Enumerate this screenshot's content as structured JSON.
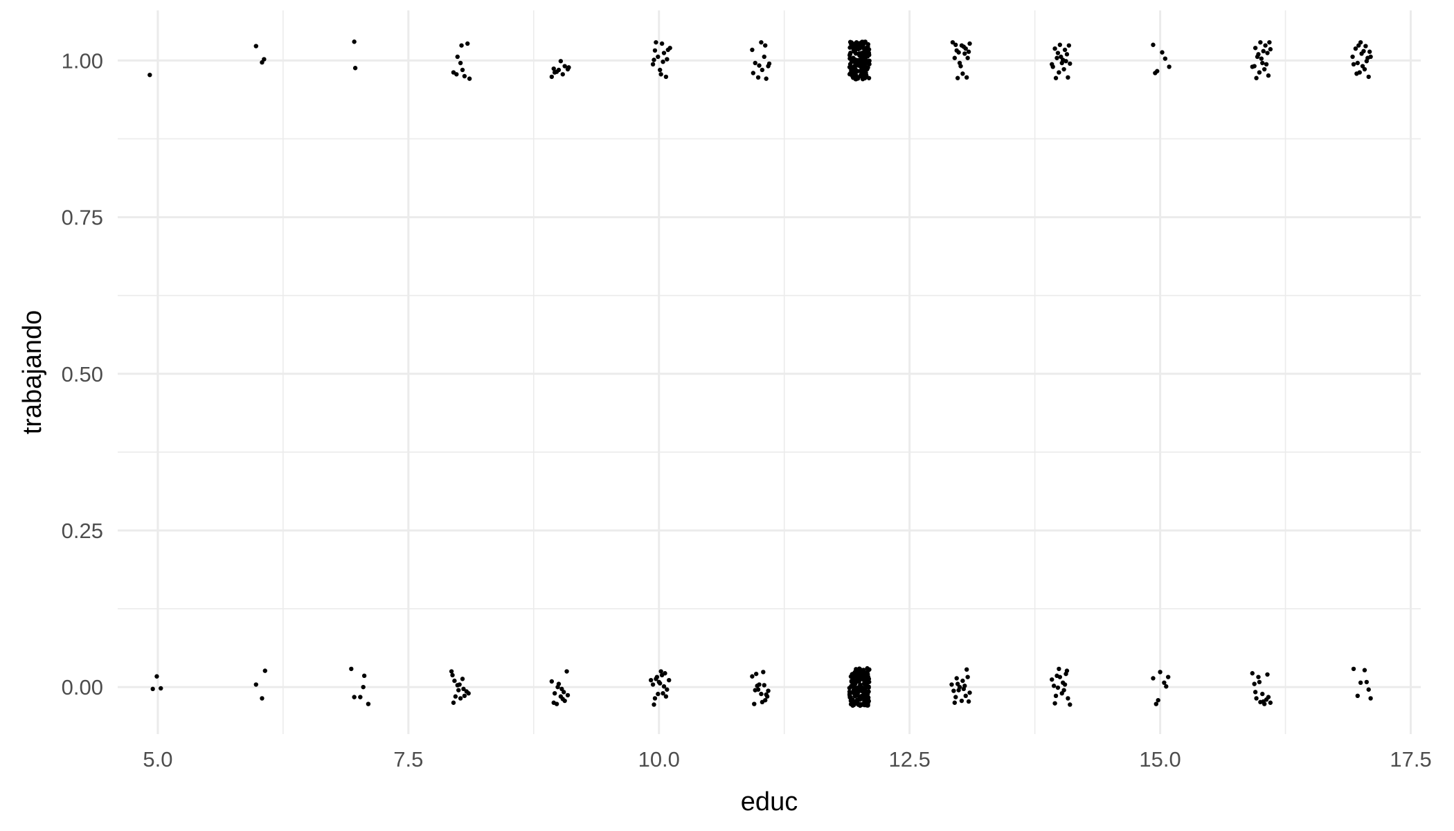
{
  "chart_data": {
    "type": "scatter",
    "title": "",
    "xlabel": "educ",
    "ylabel": "trabajando",
    "xlim": [
      4.6,
      17.6
    ],
    "ylim": [
      -0.075,
      1.08
    ],
    "x_ticks": [
      5.0,
      7.5,
      10.0,
      12.5,
      15.0,
      17.5
    ],
    "x_tick_labels": [
      "5.0",
      "7.5",
      "10.0",
      "12.5",
      "15.0",
      "17.5"
    ],
    "y_ticks": [
      0.0,
      0.25,
      0.5,
      0.75,
      1.0
    ],
    "y_tick_labels": [
      "0.00",
      "0.25",
      "0.50",
      "0.75",
      "1.00"
    ],
    "grid": true,
    "legend": "none",
    "point_color": "#000000",
    "jitter": true,
    "points": [
      {
        "x": 4.92,
        "y": 0.977
      },
      {
        "x": 5.98,
        "y": 1.023
      },
      {
        "x": 6.06,
        "y": 1.002
      },
      {
        "x": 6.04,
        "y": 0.997
      },
      {
        "x": 6.96,
        "y": 1.03
      },
      {
        "x": 6.97,
        "y": 0.988
      },
      {
        "x": 7.95,
        "y": 0.981
      },
      {
        "x": 8.02,
        "y": 0.996
      },
      {
        "x": 8.09,
        "y": 1.027
      },
      {
        "x": 7.99,
        "y": 1.006
      },
      {
        "x": 8.04,
        "y": 0.985
      },
      {
        "x": 8.11,
        "y": 0.971
      },
      {
        "x": 8.03,
        "y": 1.024
      },
      {
        "x": 7.98,
        "y": 0.978
      },
      {
        "x": 8.06,
        "y": 0.975
      },
      {
        "x": 8.93,
        "y": 0.974
      },
      {
        "x": 8.95,
        "y": 0.987
      },
      {
        "x": 9.0,
        "y": 0.985
      },
      {
        "x": 9.06,
        "y": 0.991
      },
      {
        "x": 9.02,
        "y": 0.999
      },
      {
        "x": 8.98,
        "y": 0.982
      },
      {
        "x": 9.09,
        "y": 0.986
      },
      {
        "x": 9.04,
        "y": 0.978
      },
      {
        "x": 9.1,
        "y": 0.989
      },
      {
        "x": 8.96,
        "y": 0.981
      },
      {
        "x": 9.94,
        "y": 0.994
      },
      {
        "x": 9.97,
        "y": 1.029
      },
      {
        "x": 10.03,
        "y": 1.027
      },
      {
        "x": 10.09,
        "y": 1.017
      },
      {
        "x": 10.02,
        "y": 0.978
      },
      {
        "x": 10.07,
        "y": 0.974
      },
      {
        "x": 9.99,
        "y": 1.006
      },
      {
        "x": 10.05,
        "y": 1.012
      },
      {
        "x": 10.01,
        "y": 0.985
      },
      {
        "x": 10.08,
        "y": 1.002
      },
      {
        "x": 9.96,
        "y": 1.016
      },
      {
        "x": 10.04,
        "y": 0.998
      },
      {
        "x": 10.11,
        "y": 1.02
      },
      {
        "x": 9.95,
        "y": 1.001
      },
      {
        "x": 10.93,
        "y": 1.017
      },
      {
        "x": 10.96,
        "y": 0.996
      },
      {
        "x": 11.02,
        "y": 1.029
      },
      {
        "x": 11.06,
        "y": 1.024
      },
      {
        "x": 11.09,
        "y": 0.991
      },
      {
        "x": 10.94,
        "y": 0.98
      },
      {
        "x": 11.03,
        "y": 0.985
      },
      {
        "x": 11.07,
        "y": 0.971
      },
      {
        "x": 11.0,
        "y": 0.992
      },
      {
        "x": 11.05,
        "y": 1.006
      },
      {
        "x": 10.99,
        "y": 0.973
      },
      {
        "x": 11.1,
        "y": 0.995
      },
      {
        "x": 12.93,
        "y": 1.029
      },
      {
        "x": 12.97,
        "y": 1.016
      },
      {
        "x": 13.02,
        "y": 1.024
      },
      {
        "x": 13.06,
        "y": 1.019
      },
      {
        "x": 13.1,
        "y": 1.027
      },
      {
        "x": 12.95,
        "y": 1.004
      },
      {
        "x": 13.0,
        "y": 0.996
      },
      {
        "x": 13.05,
        "y": 1.011
      },
      {
        "x": 13.08,
        "y": 1.004
      },
      {
        "x": 12.98,
        "y": 0.972
      },
      {
        "x": 13.03,
        "y": 0.979
      },
      {
        "x": 13.07,
        "y": 0.973
      },
      {
        "x": 13.01,
        "y": 0.991
      },
      {
        "x": 12.99,
        "y": 1.013
      },
      {
        "x": 13.04,
        "y": 1.022
      },
      {
        "x": 12.96,
        "y": 1.025
      },
      {
        "x": 13.09,
        "y": 1.014
      },
      {
        "x": 13.92,
        "y": 0.994
      },
      {
        "x": 13.95,
        "y": 1.019
      },
      {
        "x": 14.0,
        "y": 1.025
      },
      {
        "x": 14.05,
        "y": 1.017
      },
      {
        "x": 14.09,
        "y": 1.024
      },
      {
        "x": 13.97,
        "y": 1.004
      },
      {
        "x": 14.02,
        "y": 0.996
      },
      {
        "x": 14.07,
        "y": 1.01
      },
      {
        "x": 13.99,
        "y": 0.981
      },
      {
        "x": 14.04,
        "y": 0.986
      },
      {
        "x": 14.08,
        "y": 0.973
      },
      {
        "x": 13.96,
        "y": 0.972
      },
      {
        "x": 14.01,
        "y": 1.006
      },
      {
        "x": 14.06,
        "y": 0.999
      },
      {
        "x": 13.93,
        "y": 0.99
      },
      {
        "x": 14.03,
        "y": 1.001
      },
      {
        "x": 14.1,
        "y": 0.995
      },
      {
        "x": 13.98,
        "y": 1.012
      },
      {
        "x": 14.93,
        "y": 1.025
      },
      {
        "x": 14.97,
        "y": 0.983
      },
      {
        "x": 15.02,
        "y": 1.013
      },
      {
        "x": 15.05,
        "y": 1.003
      },
      {
        "x": 15.09,
        "y": 0.99
      },
      {
        "x": 14.95,
        "y": 0.98
      },
      {
        "x": 15.92,
        "y": 0.99
      },
      {
        "x": 15.95,
        "y": 1.02
      },
      {
        "x": 16.0,
        "y": 1.029
      },
      {
        "x": 16.05,
        "y": 1.024
      },
      {
        "x": 16.09,
        "y": 1.029
      },
      {
        "x": 15.97,
        "y": 1.006
      },
      {
        "x": 16.02,
        "y": 0.996
      },
      {
        "x": 16.07,
        "y": 1.012
      },
      {
        "x": 15.99,
        "y": 0.981
      },
      {
        "x": 16.04,
        "y": 0.986
      },
      {
        "x": 16.08,
        "y": 0.976
      },
      {
        "x": 15.96,
        "y": 0.972
      },
      {
        "x": 16.01,
        "y": 1.003
      },
      {
        "x": 16.06,
        "y": 0.994
      },
      {
        "x": 15.94,
        "y": 0.991
      },
      {
        "x": 16.03,
        "y": 1.015
      },
      {
        "x": 16.1,
        "y": 1.018
      },
      {
        "x": 15.98,
        "y": 1.01
      },
      {
        "x": 16.92,
        "y": 1.006
      },
      {
        "x": 16.95,
        "y": 1.019
      },
      {
        "x": 17.0,
        "y": 1.029
      },
      {
        "x": 17.05,
        "y": 1.023
      },
      {
        "x": 17.09,
        "y": 1.014
      },
      {
        "x": 16.97,
        "y": 0.996
      },
      {
        "x": 17.02,
        "y": 0.991
      },
      {
        "x": 17.07,
        "y": 1.004
      },
      {
        "x": 16.99,
        "y": 0.981
      },
      {
        "x": 17.04,
        "y": 0.986
      },
      {
        "x": 17.08,
        "y": 0.974
      },
      {
        "x": 16.96,
        "y": 0.979
      },
      {
        "x": 17.01,
        "y": 1.011
      },
      {
        "x": 17.06,
        "y": 0.999
      },
      {
        "x": 16.93,
        "y": 0.994
      },
      {
        "x": 17.03,
        "y": 1.015
      },
      {
        "x": 17.1,
        "y": 1.006
      },
      {
        "x": 16.98,
        "y": 1.024
      },
      {
        "x": 4.95,
        "y": -0.003
      },
      {
        "x": 4.99,
        "y": 0.017
      },
      {
        "x": 5.03,
        "y": -0.002
      },
      {
        "x": 5.98,
        "y": 0.004
      },
      {
        "x": 6.04,
        "y": -0.018
      },
      {
        "x": 6.07,
        "y": 0.026
      },
      {
        "x": 6.93,
        "y": 0.029
      },
      {
        "x": 6.96,
        "y": -0.016
      },
      {
        "x": 7.02,
        "y": -0.016
      },
      {
        "x": 7.06,
        "y": 0.018
      },
      {
        "x": 7.05,
        "y": 0.0
      },
      {
        "x": 7.1,
        "y": -0.027
      },
      {
        "x": 7.93,
        "y": 0.025
      },
      {
        "x": 7.96,
        "y": 0.01
      },
      {
        "x": 8.0,
        "y": -0.005
      },
      {
        "x": 8.04,
        "y": 0.013
      },
      {
        "x": 8.08,
        "y": -0.007
      },
      {
        "x": 7.95,
        "y": -0.025
      },
      {
        "x": 8.02,
        "y": -0.018
      },
      {
        "x": 8.06,
        "y": -0.014
      },
      {
        "x": 7.99,
        "y": 0.003
      },
      {
        "x": 8.05,
        "y": -0.003
      },
      {
        "x": 8.1,
        "y": -0.01
      },
      {
        "x": 7.97,
        "y": -0.015
      },
      {
        "x": 8.01,
        "y": 0.004
      },
      {
        "x": 7.94,
        "y": 0.019
      },
      {
        "x": 8.93,
        "y": 0.009
      },
      {
        "x": 8.96,
        "y": -0.01
      },
      {
        "x": 9.0,
        "y": 0.005
      },
      {
        "x": 9.04,
        "y": -0.019
      },
      {
        "x": 9.08,
        "y": 0.025
      },
      {
        "x": 8.95,
        "y": -0.025
      },
      {
        "x": 9.02,
        "y": -0.015
      },
      {
        "x": 9.06,
        "y": -0.022
      },
      {
        "x": 8.99,
        "y": 0.0
      },
      {
        "x": 9.05,
        "y": -0.008
      },
      {
        "x": 9.09,
        "y": -0.013
      },
      {
        "x": 8.98,
        "y": -0.027
      },
      {
        "x": 9.03,
        "y": -0.003
      },
      {
        "x": 9.92,
        "y": 0.011
      },
      {
        "x": 9.95,
        "y": -0.028
      },
      {
        "x": 9.98,
        "y": 0.016
      },
      {
        "x": 10.02,
        "y": 0.025
      },
      {
        "x": 10.06,
        "y": 0.022
      },
      {
        "x": 10.1,
        "y": 0.011
      },
      {
        "x": 9.96,
        "y": -0.018
      },
      {
        "x": 10.0,
        "y": 0.008
      },
      {
        "x": 10.04,
        "y": -0.01
      },
      {
        "x": 10.08,
        "y": -0.004
      },
      {
        "x": 9.94,
        "y": 0.004
      },
      {
        "x": 9.99,
        "y": -0.011
      },
      {
        "x": 10.03,
        "y": 0.019
      },
      {
        "x": 10.07,
        "y": -0.015
      },
      {
        "x": 10.01,
        "y": 0.006
      },
      {
        "x": 9.97,
        "y": 0.013
      },
      {
        "x": 10.05,
        "y": 0.001
      },
      {
        "x": 10.93,
        "y": 0.017
      },
      {
        "x": 10.96,
        "y": -0.005
      },
      {
        "x": 11.0,
        "y": 0.004
      },
      {
        "x": 11.04,
        "y": 0.024
      },
      {
        "x": 11.08,
        "y": -0.015
      },
      {
        "x": 10.95,
        "y": -0.027
      },
      {
        "x": 11.02,
        "y": -0.011
      },
      {
        "x": 11.06,
        "y": -0.021
      },
      {
        "x": 10.99,
        "y": -0.004
      },
      {
        "x": 11.05,
        "y": 0.003
      },
      {
        "x": 11.09,
        "y": -0.006
      },
      {
        "x": 10.98,
        "y": 0.002
      },
      {
        "x": 11.03,
        "y": -0.024
      },
      {
        "x": 10.97,
        "y": 0.021
      },
      {
        "x": 11.07,
        "y": -0.012
      },
      {
        "x": 12.92,
        "y": 0.004
      },
      {
        "x": 12.95,
        "y": -0.025
      },
      {
        "x": 12.99,
        "y": -0.005
      },
      {
        "x": 13.03,
        "y": 0.01
      },
      {
        "x": 13.07,
        "y": 0.028
      },
      {
        "x": 13.1,
        "y": -0.009
      },
      {
        "x": 12.96,
        "y": -0.016
      },
      {
        "x": 13.0,
        "y": 0.0
      },
      {
        "x": 13.04,
        "y": -0.003
      },
      {
        "x": 13.08,
        "y": 0.016
      },
      {
        "x": 12.94,
        "y": -0.006
      },
      {
        "x": 13.02,
        "y": -0.022
      },
      {
        "x": 13.06,
        "y": -0.014
      },
      {
        "x": 12.98,
        "y": 0.005
      },
      {
        "x": 13.05,
        "y": 0.002
      },
      {
        "x": 13.09,
        "y": -0.023
      },
      {
        "x": 12.97,
        "y": 0.014
      },
      {
        "x": 13.92,
        "y": 0.012
      },
      {
        "x": 13.95,
        "y": -0.026
      },
      {
        "x": 13.99,
        "y": 0.029
      },
      {
        "x": 14.03,
        "y": 0.007
      },
      {
        "x": 14.07,
        "y": 0.026
      },
      {
        "x": 14.1,
        "y": -0.028
      },
      {
        "x": 13.96,
        "y": -0.014
      },
      {
        "x": 14.0,
        "y": 0.016
      },
      {
        "x": 14.04,
        "y": -0.005
      },
      {
        "x": 14.08,
        "y": -0.018
      },
      {
        "x": 13.94,
        "y": 0.002
      },
      {
        "x": 14.02,
        "y": -0.01
      },
      {
        "x": 14.06,
        "y": 0.021
      },
      {
        "x": 13.98,
        "y": -0.001
      },
      {
        "x": 14.05,
        "y": 0.004
      },
      {
        "x": 13.97,
        "y": 0.018
      },
      {
        "x": 14.93,
        "y": 0.014
      },
      {
        "x": 14.96,
        "y": -0.027
      },
      {
        "x": 15.0,
        "y": 0.024
      },
      {
        "x": 15.04,
        "y": 0.007
      },
      {
        "x": 15.08,
        "y": 0.016
      },
      {
        "x": 14.98,
        "y": -0.021
      },
      {
        "x": 15.06,
        "y": 0.001
      },
      {
        "x": 15.92,
        "y": 0.022
      },
      {
        "x": 15.95,
        "y": -0.008
      },
      {
        "x": 15.99,
        "y": 0.008
      },
      {
        "x": 16.03,
        "y": -0.023
      },
      {
        "x": 16.07,
        "y": 0.02
      },
      {
        "x": 16.1,
        "y": -0.025
      },
      {
        "x": 15.96,
        "y": -0.018
      },
      {
        "x": 16.0,
        "y": -0.024
      },
      {
        "x": 16.04,
        "y": -0.027
      },
      {
        "x": 16.08,
        "y": -0.016
      },
      {
        "x": 15.94,
        "y": 0.005
      },
      {
        "x": 16.02,
        "y": -0.011
      },
      {
        "x": 16.06,
        "y": -0.02
      },
      {
        "x": 15.98,
        "y": 0.016
      },
      {
        "x": 16.93,
        "y": 0.029
      },
      {
        "x": 16.97,
        "y": -0.014
      },
      {
        "x": 17.0,
        "y": 0.007
      },
      {
        "x": 17.04,
        "y": 0.027
      },
      {
        "x": 17.08,
        "y": -0.004
      },
      {
        "x": 17.1,
        "y": -0.018
      },
      {
        "x": 17.06,
        "y": 0.008
      }
    ],
    "dense_clusters": [
      {
        "x": 12.0,
        "y": 1.0,
        "count": 190,
        "x_spread": 0.1,
        "y_spread": 0.03
      },
      {
        "x": 12.0,
        "y": 0.0,
        "count": 180,
        "x_spread": 0.1,
        "y_spread": 0.03
      }
    ]
  }
}
